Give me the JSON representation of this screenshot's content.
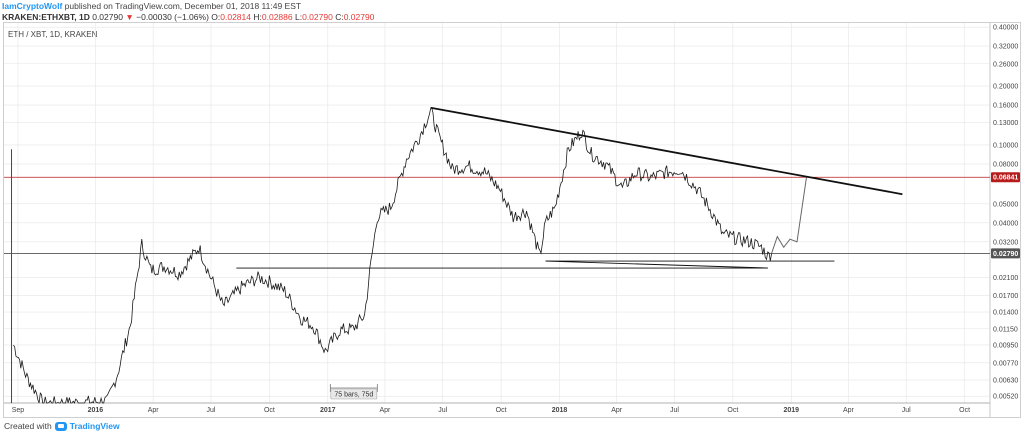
{
  "header": {
    "author": "IamCryptoWolf",
    "published": "published on TradingView.com, December 01, 2018 11:49 EST",
    "symbol": "KRAKEN:ETHXBT, 1D",
    "last": "0.02790",
    "change": "−0.00030 (−1.06%)",
    "open_label": "O:",
    "open": "0.02814",
    "high_label": "H:",
    "high": "0.02886",
    "low_label": "L:",
    "low": "0.02790",
    "close_label": "C:",
    "close": "0.02790"
  },
  "legend_title": "ETH / XBT, 1D, KRAKEN",
  "measure_label": "75 bars, 75d",
  "footer": {
    "created_with": "Created with",
    "brand": "TradingView"
  },
  "colors": {
    "price_line": "#b71c1c",
    "current_line": "#555555",
    "series": "#1a1a1a",
    "grid": "#e6e6e6"
  },
  "chart_data": {
    "type": "line",
    "scale": "log",
    "title": "ETH / XBT, 1D, KRAKEN",
    "y_ticks": [
      "0.40000",
      "0.32000",
      "0.26000",
      "0.20000",
      "0.16000",
      "0.13000",
      "0.10000",
      "0.08000",
      "0.06841",
      "0.05000",
      "0.04000",
      "0.03200",
      "0.02790",
      "0.02100",
      "0.01700",
      "0.01400",
      "0.01150",
      "0.00950",
      "0.00770",
      "0.00630",
      "0.00520"
    ],
    "y_tick_values": [
      0.4,
      0.32,
      0.26,
      0.2,
      0.16,
      0.13,
      0.1,
      0.08,
      0.05,
      0.04,
      0.032,
      0.021,
      0.017,
      0.014,
      0.0115,
      0.0095,
      0.0077,
      0.0063,
      0.0052
    ],
    "x_ticks": [
      "Sep",
      "2016",
      "Apr",
      "Jul",
      "Oct",
      "2017",
      "Apr",
      "Jul",
      "Oct",
      "2018",
      "Apr",
      "Jul",
      "Oct",
      "2019",
      "Apr",
      "Jul",
      "Oct"
    ],
    "ylim": [
      0.0048,
      0.42
    ],
    "highlight_levels": [
      {
        "label": "0.06841",
        "value": 0.06841,
        "color": "#b71c1c"
      },
      {
        "label": "0.02790",
        "value": 0.0279,
        "color": "#555555"
      }
    ],
    "series": [
      {
        "x": [
          "2015-08-25",
          "2015-09-15",
          "2015-10-10",
          "2015-11-15",
          "2016-01-20",
          "2016-02-05",
          "2016-02-25",
          "2016-03-14",
          "2016-03-28",
          "2016-04-20",
          "2016-05-12",
          "2016-06-12",
          "2016-06-28",
          "2016-07-20",
          "2016-08-20",
          "2016-09-15",
          "2016-10-01",
          "2016-10-25",
          "2016-11-20",
          "2016-12-10",
          "2016-12-28",
          "2017-01-20",
          "2017-02-10",
          "2017-02-28",
          "2017-03-10",
          "2017-03-20",
          "2017-04-10",
          "2017-05-05",
          "2017-05-25",
          "2017-06-12",
          "2017-06-25",
          "2017-07-16",
          "2017-08-10",
          "2017-09-05",
          "2017-09-28",
          "2017-10-20",
          "2017-11-10",
          "2017-12-01",
          "2017-12-10",
          "2017-12-25",
          "2018-01-15",
          "2018-02-05",
          "2018-02-20",
          "2018-03-15",
          "2018-04-10",
          "2018-05-01",
          "2018-05-25",
          "2018-06-15",
          "2018-07-10",
          "2018-08-05",
          "2018-08-28",
          "2018-09-15",
          "2018-10-10",
          "2018-10-28",
          "2018-11-15",
          "2018-11-25",
          "2018-12-01"
        ],
        "values": [
          0.0095,
          0.0065,
          0.0048,
          0.0048,
          0.0049,
          0.0068,
          0.012,
          0.031,
          0.023,
          0.024,
          0.022,
          0.03,
          0.022,
          0.015,
          0.019,
          0.021,
          0.02,
          0.018,
          0.013,
          0.0118,
          0.0088,
          0.0113,
          0.0115,
          0.0135,
          0.025,
          0.043,
          0.048,
          0.085,
          0.11,
          0.15,
          0.11,
          0.075,
          0.078,
          0.073,
          0.06,
          0.043,
          0.046,
          0.027,
          0.04,
          0.048,
          0.095,
          0.118,
          0.09,
          0.08,
          0.06,
          0.072,
          0.068,
          0.072,
          0.075,
          0.06,
          0.046,
          0.035,
          0.033,
          0.032,
          0.03,
          0.027,
          0.0279
        ]
      },
      {
        "name": "projection",
        "x": [
          "2018-12-01",
          "2018-12-10",
          "2018-12-20",
          "2018-12-30",
          "2019-01-10",
          "2019-01-25"
        ],
        "values": [
          0.0279,
          0.034,
          0.03,
          0.033,
          0.032,
          0.06841
        ]
      }
    ],
    "trendlines": [
      {
        "x": [
          "2017-06-12",
          "2019-06-25"
        ],
        "values": [
          0.155,
          0.056
        ]
      },
      {
        "x": [
          "2017-12-10",
          "2019-03-10"
        ],
        "values": [
          0.0255,
          0.0255
        ]
      },
      {
        "x": [
          "2016-08-10",
          "2018-11-25"
        ],
        "values": [
          0.0235,
          0.0235
        ]
      },
      {
        "x": [
          "2017-12-10",
          "2018-11-25"
        ],
        "values": [
          0.0255,
          0.0235
        ]
      }
    ],
    "measure": {
      "x": [
        "2017-01-05",
        "2017-03-20"
      ]
    }
  }
}
